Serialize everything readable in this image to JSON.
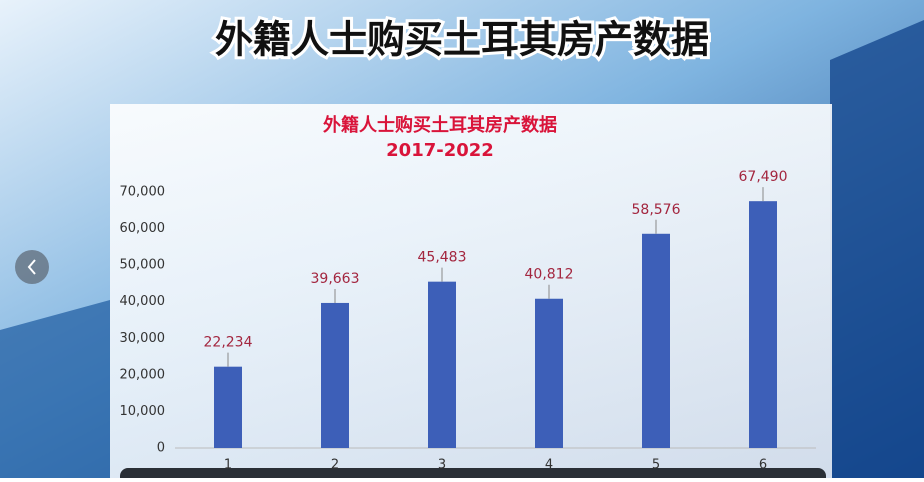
{
  "header": {
    "title": "外籍人士购买土耳其房产数据"
  },
  "chart_data": {
    "type": "bar",
    "title": "外籍人士购买土耳其房产数据",
    "subtitle": "2017-2022",
    "categories": [
      "1",
      "2",
      "3",
      "4",
      "5",
      "6"
    ],
    "values": [
      22234,
      39663,
      45483,
      40812,
      58576,
      67490
    ],
    "value_labels": [
      "22,234",
      "39,663",
      "45,483",
      "40,812",
      "58,576",
      "67,490"
    ],
    "color": "#3d5fb8",
    "ylim": [
      0,
      70000
    ],
    "yticks": [
      0,
      {
        "value": 10000,
        "label": "10,000"
      },
      {
        "value": 20000,
        "label": "20,000"
      },
      {
        "value": 30000,
        "label": "30,000"
      },
      {
        "value": 40000,
        "label": "40,000"
      },
      {
        "value": 50000,
        "label": "50,000"
      },
      {
        "value": 60000,
        "label": "60,000"
      },
      {
        "value": 70000,
        "label": "70,000"
      }
    ],
    "grid": false
  }
}
